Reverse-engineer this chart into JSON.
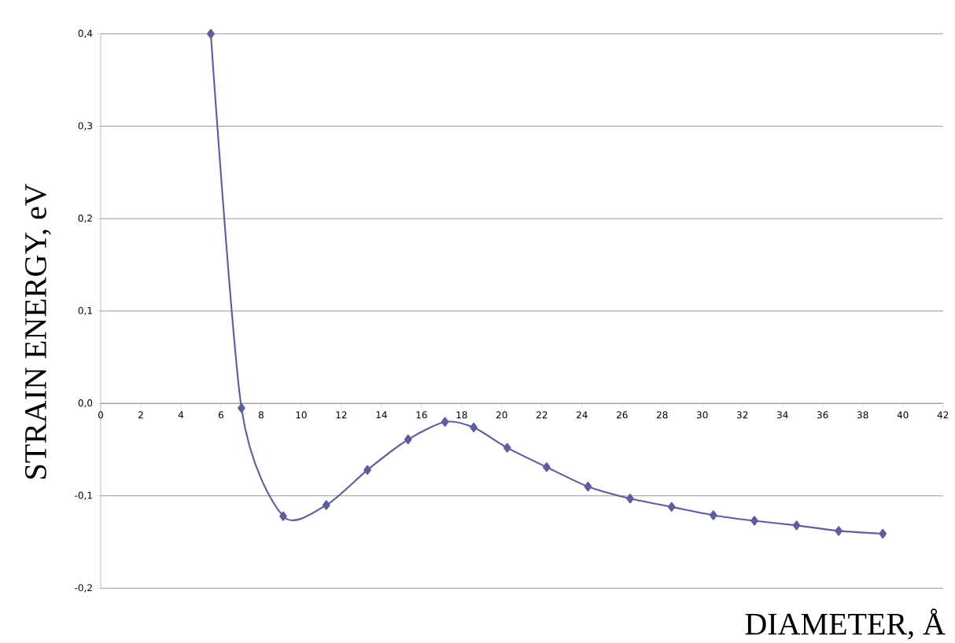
{
  "chart_data": {
    "type": "line",
    "xlabel": "DIAMETER, Å",
    "ylabel": "STRAIN ENERGY, eV",
    "x": [
      5.49,
      7.02,
      9.1,
      11.25,
      13.3,
      15.33,
      17.17,
      18.6,
      20.27,
      22.24,
      24.3,
      26.4,
      28.47,
      30.55,
      32.6,
      34.7,
      36.8,
      39.0
    ],
    "series": [
      {
        "color": "#5e5e9c",
        "values": [
          0.4,
          -0.005,
          -0.122,
          -0.11,
          -0.072,
          -0.039,
          -0.02,
          -0.026,
          -0.048,
          -0.069,
          -0.09,
          -0.103,
          -0.112,
          -0.121,
          -0.127,
          -0.132,
          -0.138,
          -0.141
        ]
      }
    ],
    "xlim": [
      0,
      42
    ],
    "ylim": [
      -0.2,
      0.4
    ],
    "xticks": [
      0,
      2,
      4,
      6,
      8,
      10,
      12,
      14,
      16,
      18,
      20,
      22,
      24,
      26,
      28,
      30,
      32,
      34,
      36,
      38,
      40,
      42
    ],
    "yticks": [
      {
        "value": -0.2,
        "label": "-0,2"
      },
      {
        "value": -0.1,
        "label": "-0,1"
      },
      {
        "value": 0,
        "label": "0,0"
      },
      {
        "value": 0.1,
        "label": "0,1"
      },
      {
        "value": 0.2,
        "label": "0,2"
      },
      {
        "value": 0.3,
        "label": "0,3"
      },
      {
        "value": 0.4,
        "label": "0,4"
      }
    ],
    "grid": "y",
    "marker": "diamond"
  }
}
